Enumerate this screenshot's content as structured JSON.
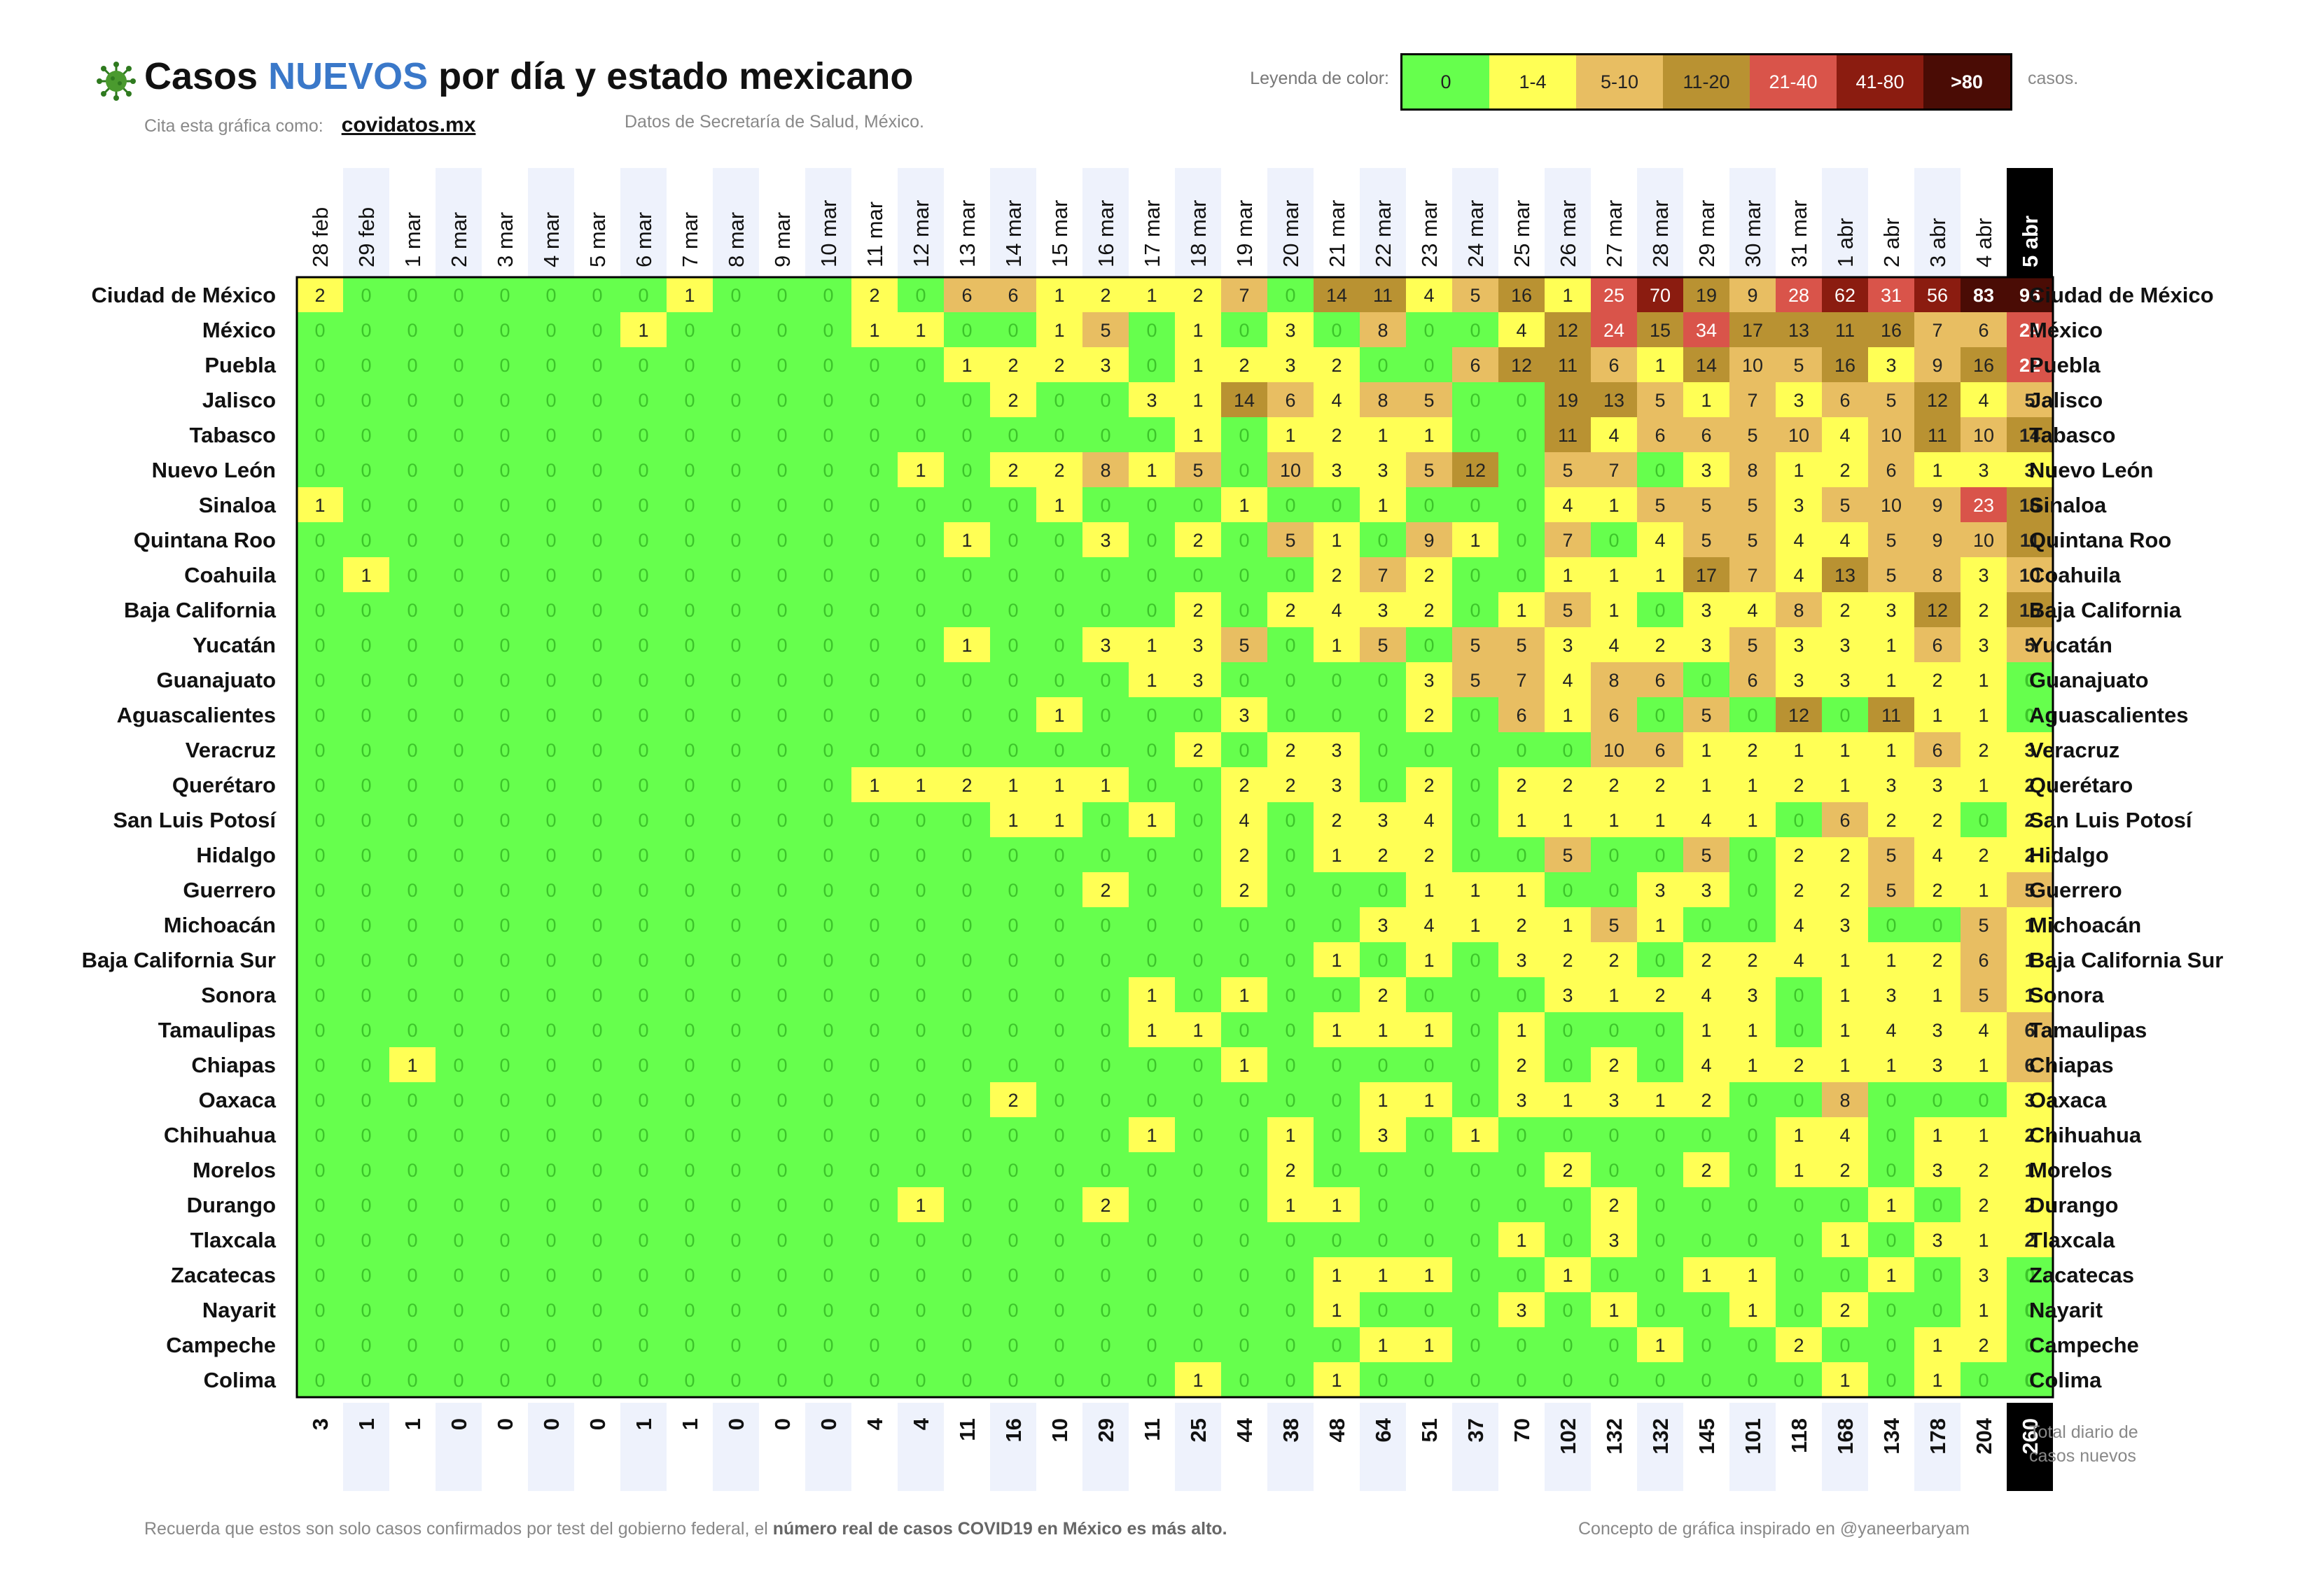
{
  "header": {
    "title_start": "Casos ",
    "title_highlight": "NUEVOS",
    "title_end": " por día y estado mexicano",
    "cite_label": "Cita esta gráfica como:",
    "cite_link": "covidatos.mx",
    "source": "Datos de Secretaría de Salud, México."
  },
  "legend": {
    "title": "Leyenda de color:",
    "unit": "casos.",
    "items": [
      {
        "label": "0",
        "color": "#66ff4d",
        "text_color": "#222222"
      },
      {
        "label": "1-4",
        "color": "#ffff55",
        "text_color": "#222222"
      },
      {
        "label": "5-10",
        "color": "#e8be62",
        "text_color": "#222222"
      },
      {
        "label": "11-20",
        "color": "#b99232",
        "text_color": "#222222"
      },
      {
        "label": "21-40",
        "color": "#d9544a",
        "text_color": "#ffffff"
      },
      {
        "label": "41-80",
        "color": "#8b1c10",
        "text_color": "#ffffff"
      },
      {
        "label": ">80",
        "color": "#4a0c05",
        "text_color": "#ffffff"
      }
    ]
  },
  "chart_data": {
    "type": "heatmap",
    "title": "Casos NUEVOS por día y estado mexicano",
    "dates": [
      "28 feb",
      "29 feb",
      "1 mar",
      "2 mar",
      "3 mar",
      "4 mar",
      "5 mar",
      "6 mar",
      "7 mar",
      "8 mar",
      "9 mar",
      "10 mar",
      "11 mar",
      "12 mar",
      "13 mar",
      "14 mar",
      "15 mar",
      "16 mar",
      "17 mar",
      "18 mar",
      "19 mar",
      "20 mar",
      "21 mar",
      "22 mar",
      "23 mar",
      "24 mar",
      "25 mar",
      "26 mar",
      "27 mar",
      "28 mar",
      "29 mar",
      "30 mar",
      "31 mar",
      "1 abr",
      "2 abr",
      "3 abr",
      "4 abr",
      "5 abr"
    ],
    "states": [
      "Ciudad de México",
      "México",
      "Puebla",
      "Jalisco",
      "Tabasco",
      "Nuevo León",
      "Sinaloa",
      "Quintana Roo",
      "Coahuila",
      "Baja California",
      "Yucatán",
      "Guanajuato",
      "Aguascalientes",
      "Veracruz",
      "Querétaro",
      "San Luis Potosí",
      "Hidalgo",
      "Guerrero",
      "Michoacán",
      "Baja California Sur",
      "Sonora",
      "Tamaulipas",
      "Chiapas",
      "Oaxaca",
      "Chihuahua",
      "Morelos",
      "Durango",
      "Tlaxcala",
      "Zacatecas",
      "Nayarit",
      "Campeche",
      "Colima"
    ],
    "values": [
      [
        2,
        0,
        0,
        0,
        0,
        0,
        0,
        0,
        1,
        0,
        0,
        0,
        2,
        0,
        6,
        6,
        1,
        2,
        1,
        2,
        7,
        0,
        14,
        11,
        4,
        5,
        16,
        1,
        25,
        70,
        19,
        9,
        28,
        62,
        31,
        56,
        83,
        96
      ],
      [
        0,
        0,
        0,
        0,
        0,
        0,
        0,
        1,
        0,
        0,
        0,
        0,
        1,
        1,
        0,
        0,
        1,
        5,
        0,
        1,
        0,
        3,
        0,
        8,
        0,
        0,
        4,
        12,
        24,
        15,
        34,
        17,
        13,
        11,
        16,
        7,
        6,
        24
      ],
      [
        0,
        0,
        0,
        0,
        0,
        0,
        0,
        0,
        0,
        0,
        0,
        0,
        0,
        0,
        1,
        2,
        2,
        3,
        0,
        1,
        2,
        3,
        2,
        0,
        0,
        6,
        12,
        11,
        6,
        1,
        14,
        10,
        5,
        16,
        3,
        9,
        16,
        22
      ],
      [
        0,
        0,
        0,
        0,
        0,
        0,
        0,
        0,
        0,
        0,
        0,
        0,
        0,
        0,
        0,
        2,
        0,
        0,
        3,
        1,
        14,
        6,
        4,
        8,
        5,
        0,
        0,
        19,
        13,
        5,
        1,
        7,
        3,
        6,
        5,
        12,
        4,
        5
      ],
      [
        0,
        0,
        0,
        0,
        0,
        0,
        0,
        0,
        0,
        0,
        0,
        0,
        0,
        0,
        0,
        0,
        0,
        0,
        0,
        1,
        0,
        1,
        2,
        1,
        1,
        0,
        0,
        11,
        4,
        6,
        6,
        5,
        10,
        4,
        10,
        11,
        10,
        14
      ],
      [
        0,
        0,
        0,
        0,
        0,
        0,
        0,
        0,
        0,
        0,
        0,
        0,
        0,
        1,
        0,
        2,
        2,
        8,
        1,
        5,
        0,
        10,
        3,
        3,
        5,
        12,
        0,
        5,
        7,
        0,
        3,
        8,
        1,
        2,
        6,
        1,
        3,
        3
      ],
      [
        1,
        0,
        0,
        0,
        0,
        0,
        0,
        0,
        0,
        0,
        0,
        0,
        0,
        0,
        0,
        0,
        1,
        0,
        0,
        0,
        1,
        0,
        0,
        1,
        0,
        0,
        0,
        4,
        1,
        5,
        5,
        5,
        3,
        5,
        10,
        9,
        23,
        16
      ],
      [
        0,
        0,
        0,
        0,
        0,
        0,
        0,
        0,
        0,
        0,
        0,
        0,
        0,
        0,
        1,
        0,
        0,
        3,
        0,
        2,
        0,
        5,
        1,
        0,
        9,
        1,
        0,
        7,
        0,
        4,
        5,
        5,
        4,
        4,
        5,
        9,
        10,
        11
      ],
      [
        0,
        1,
        0,
        0,
        0,
        0,
        0,
        0,
        0,
        0,
        0,
        0,
        0,
        0,
        0,
        0,
        0,
        0,
        0,
        0,
        0,
        0,
        2,
        7,
        2,
        0,
        0,
        1,
        1,
        1,
        17,
        7,
        4,
        13,
        5,
        8,
        3,
        10
      ],
      [
        0,
        0,
        0,
        0,
        0,
        0,
        0,
        0,
        0,
        0,
        0,
        0,
        0,
        0,
        0,
        0,
        0,
        0,
        0,
        2,
        0,
        2,
        4,
        3,
        2,
        0,
        1,
        5,
        1,
        0,
        3,
        4,
        8,
        2,
        3,
        12,
        2,
        15
      ],
      [
        0,
        0,
        0,
        0,
        0,
        0,
        0,
        0,
        0,
        0,
        0,
        0,
        0,
        0,
        1,
        0,
        0,
        3,
        1,
        3,
        5,
        0,
        1,
        5,
        0,
        5,
        5,
        3,
        4,
        2,
        3,
        5,
        3,
        3,
        1,
        6,
        3,
        5
      ],
      [
        0,
        0,
        0,
        0,
        0,
        0,
        0,
        0,
        0,
        0,
        0,
        0,
        0,
        0,
        0,
        0,
        0,
        0,
        1,
        3,
        0,
        0,
        0,
        0,
        3,
        5,
        7,
        4,
        8,
        6,
        0,
        6,
        3,
        3,
        1,
        2,
        1,
        0
      ],
      [
        0,
        0,
        0,
        0,
        0,
        0,
        0,
        0,
        0,
        0,
        0,
        0,
        0,
        0,
        0,
        0,
        1,
        0,
        0,
        0,
        3,
        0,
        0,
        0,
        2,
        0,
        6,
        1,
        6,
        0,
        5,
        0,
        12,
        0,
        11,
        1,
        1,
        0
      ],
      [
        0,
        0,
        0,
        0,
        0,
        0,
        0,
        0,
        0,
        0,
        0,
        0,
        0,
        0,
        0,
        0,
        0,
        0,
        0,
        2,
        0,
        2,
        3,
        0,
        0,
        0,
        0,
        0,
        10,
        6,
        1,
        2,
        1,
        1,
        1,
        6,
        2,
        3
      ],
      [
        0,
        0,
        0,
        0,
        0,
        0,
        0,
        0,
        0,
        0,
        0,
        0,
        1,
        1,
        2,
        1,
        1,
        1,
        0,
        0,
        2,
        2,
        3,
        0,
        2,
        0,
        2,
        2,
        2,
        2,
        1,
        1,
        2,
        1,
        3,
        3,
        1,
        2
      ],
      [
        0,
        0,
        0,
        0,
        0,
        0,
        0,
        0,
        0,
        0,
        0,
        0,
        0,
        0,
        0,
        1,
        1,
        0,
        1,
        0,
        4,
        0,
        2,
        3,
        4,
        0,
        1,
        1,
        1,
        1,
        4,
        1,
        0,
        6,
        2,
        2,
        0,
        2
      ],
      [
        0,
        0,
        0,
        0,
        0,
        0,
        0,
        0,
        0,
        0,
        0,
        0,
        0,
        0,
        0,
        0,
        0,
        0,
        0,
        0,
        2,
        0,
        1,
        2,
        2,
        0,
        0,
        5,
        0,
        0,
        5,
        0,
        2,
        2,
        5,
        4,
        2,
        2
      ],
      [
        0,
        0,
        0,
        0,
        0,
        0,
        0,
        0,
        0,
        0,
        0,
        0,
        0,
        0,
        0,
        0,
        0,
        2,
        0,
        0,
        2,
        0,
        0,
        0,
        1,
        1,
        1,
        0,
        0,
        3,
        3,
        0,
        2,
        2,
        5,
        2,
        1,
        5
      ],
      [
        0,
        0,
        0,
        0,
        0,
        0,
        0,
        0,
        0,
        0,
        0,
        0,
        0,
        0,
        0,
        0,
        0,
        0,
        0,
        0,
        0,
        0,
        0,
        3,
        4,
        1,
        2,
        1,
        5,
        1,
        0,
        0,
        4,
        3,
        0,
        0,
        5,
        1
      ],
      [
        0,
        0,
        0,
        0,
        0,
        0,
        0,
        0,
        0,
        0,
        0,
        0,
        0,
        0,
        0,
        0,
        0,
        0,
        0,
        0,
        0,
        0,
        1,
        0,
        1,
        0,
        3,
        2,
        2,
        0,
        2,
        2,
        4,
        1,
        1,
        2,
        6,
        1
      ],
      [
        0,
        0,
        0,
        0,
        0,
        0,
        0,
        0,
        0,
        0,
        0,
        0,
        0,
        0,
        0,
        0,
        0,
        0,
        1,
        0,
        1,
        0,
        0,
        2,
        0,
        0,
        0,
        3,
        1,
        2,
        4,
        3,
        0,
        1,
        3,
        1,
        5,
        1
      ],
      [
        0,
        0,
        0,
        0,
        0,
        0,
        0,
        0,
        0,
        0,
        0,
        0,
        0,
        0,
        0,
        0,
        0,
        0,
        1,
        1,
        0,
        0,
        1,
        1,
        1,
        0,
        1,
        0,
        0,
        0,
        1,
        1,
        0,
        1,
        4,
        3,
        4,
        6
      ],
      [
        0,
        0,
        1,
        0,
        0,
        0,
        0,
        0,
        0,
        0,
        0,
        0,
        0,
        0,
        0,
        0,
        0,
        0,
        0,
        0,
        1,
        0,
        0,
        0,
        0,
        0,
        2,
        0,
        2,
        0,
        4,
        1,
        2,
        1,
        1,
        3,
        1,
        6
      ],
      [
        0,
        0,
        0,
        0,
        0,
        0,
        0,
        0,
        0,
        0,
        0,
        0,
        0,
        0,
        0,
        2,
        0,
        0,
        0,
        0,
        0,
        0,
        0,
        1,
        1,
        0,
        3,
        1,
        3,
        1,
        2,
        0,
        0,
        8,
        0,
        0,
        0,
        3
      ],
      [
        0,
        0,
        0,
        0,
        0,
        0,
        0,
        0,
        0,
        0,
        0,
        0,
        0,
        0,
        0,
        0,
        0,
        0,
        1,
        0,
        0,
        1,
        0,
        3,
        0,
        1,
        0,
        0,
        0,
        0,
        0,
        0,
        1,
        4,
        0,
        1,
        1,
        2
      ],
      [
        0,
        0,
        0,
        0,
        0,
        0,
        0,
        0,
        0,
        0,
        0,
        0,
        0,
        0,
        0,
        0,
        0,
        0,
        0,
        0,
        0,
        2,
        0,
        0,
        0,
        0,
        0,
        2,
        0,
        0,
        2,
        0,
        1,
        2,
        0,
        3,
        2,
        1
      ],
      [
        0,
        0,
        0,
        0,
        0,
        0,
        0,
        0,
        0,
        0,
        0,
        0,
        0,
        1,
        0,
        0,
        0,
        2,
        0,
        0,
        0,
        1,
        1,
        0,
        0,
        0,
        0,
        0,
        2,
        0,
        0,
        0,
        0,
        0,
        1,
        0,
        2,
        2
      ],
      [
        0,
        0,
        0,
        0,
        0,
        0,
        0,
        0,
        0,
        0,
        0,
        0,
        0,
        0,
        0,
        0,
        0,
        0,
        0,
        0,
        0,
        0,
        0,
        0,
        0,
        0,
        1,
        0,
        3,
        0,
        0,
        0,
        0,
        1,
        0,
        3,
        1,
        2
      ],
      [
        0,
        0,
        0,
        0,
        0,
        0,
        0,
        0,
        0,
        0,
        0,
        0,
        0,
        0,
        0,
        0,
        0,
        0,
        0,
        0,
        0,
        0,
        1,
        1,
        1,
        0,
        0,
        1,
        0,
        0,
        1,
        1,
        0,
        0,
        1,
        0,
        3,
        0
      ],
      [
        0,
        0,
        0,
        0,
        0,
        0,
        0,
        0,
        0,
        0,
        0,
        0,
        0,
        0,
        0,
        0,
        0,
        0,
        0,
        0,
        0,
        0,
        1,
        0,
        0,
        0,
        3,
        0,
        1,
        0,
        0,
        1,
        0,
        2,
        0,
        0,
        1,
        0
      ],
      [
        0,
        0,
        0,
        0,
        0,
        0,
        0,
        0,
        0,
        0,
        0,
        0,
        0,
        0,
        0,
        0,
        0,
        0,
        0,
        0,
        0,
        0,
        0,
        1,
        1,
        0,
        0,
        0,
        0,
        1,
        0,
        0,
        2,
        0,
        0,
        1,
        2,
        0
      ],
      [
        0,
        0,
        0,
        0,
        0,
        0,
        0,
        0,
        0,
        0,
        0,
        0,
        0,
        0,
        0,
        0,
        0,
        0,
        0,
        1,
        0,
        0,
        1,
        0,
        0,
        0,
        0,
        0,
        0,
        0,
        0,
        0,
        0,
        1,
        0,
        1,
        0,
        0
      ]
    ],
    "daily_totals": [
      3,
      1,
      1,
      0,
      0,
      0,
      0,
      1,
      1,
      0,
      0,
      0,
      4,
      4,
      11,
      16,
      10,
      29,
      11,
      25,
      44,
      38,
      48,
      64,
      51,
      37,
      70,
      102,
      132,
      132,
      145,
      101,
      118,
      168,
      134,
      178,
      204,
      260
    ],
    "totals_label": [
      "Total diario de",
      "casos nuevos"
    ],
    "color_bins": [
      {
        "min": 0,
        "max": 0,
        "color": "#66ff4d"
      },
      {
        "min": 1,
        "max": 4,
        "color": "#ffff55"
      },
      {
        "min": 5,
        "max": 10,
        "color": "#e8be62"
      },
      {
        "min": 11,
        "max": 20,
        "color": "#b99232"
      },
      {
        "min": 21,
        "max": 40,
        "color": "#d9544a"
      },
      {
        "min": 41,
        "max": 80,
        "color": "#8b1c10"
      },
      {
        "min": 81,
        "max": null,
        "color": "#4a0c05"
      }
    ]
  },
  "footer": {
    "note_start": "Recuerda que estos son solo casos confirmados por test del gobierno federal, el ",
    "note_bold": "número real de casos COVID19 en México es más alto.",
    "credit": "Concepto de gráfica inspirado en @yaneerbaryam"
  }
}
